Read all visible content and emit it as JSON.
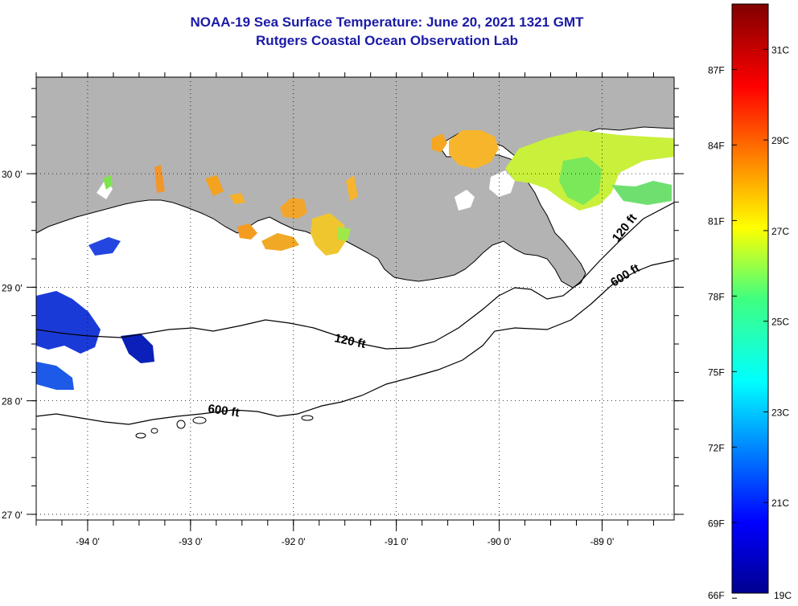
{
  "header": {
    "title": "NOAA-19 Sea Surface Temperature:  June 20, 2021 1321 GMT",
    "subtitle": "Rutgers Coastal Ocean Observation Lab"
  },
  "map": {
    "lon_range": [
      -94.5,
      -88.3
    ],
    "lat_range": [
      26.95,
      30.85
    ],
    "lon_ticks": [
      -94,
      -93,
      -92,
      -91,
      -90,
      -89
    ],
    "lat_ticks": [
      30,
      29,
      28,
      27
    ],
    "lon_labels": [
      "-94 0'",
      "-93 0'",
      "-92 0'",
      "-91 0'",
      "-90 0'",
      "-89 0'"
    ],
    "lat_labels": [
      "30 0'",
      "29 0'",
      "28 0'",
      "27 0'"
    ],
    "land_color": "#b3b3b3",
    "grid": "dotted",
    "contours": [
      {
        "label": "120 ft",
        "depth_ft": 120
      },
      {
        "label": "600 ft",
        "depth_ft": 600
      }
    ]
  },
  "colorbar": {
    "min_c": 19,
    "max_c": 32,
    "celsius_labels": [
      "31C",
      "29C",
      "27C",
      "25C",
      "23C",
      "21C",
      "19C"
    ],
    "fahrenheit_labels": [
      "87F",
      "84F",
      "81F",
      "78F",
      "75F",
      "72F",
      "69F",
      "66F"
    ]
  }
}
